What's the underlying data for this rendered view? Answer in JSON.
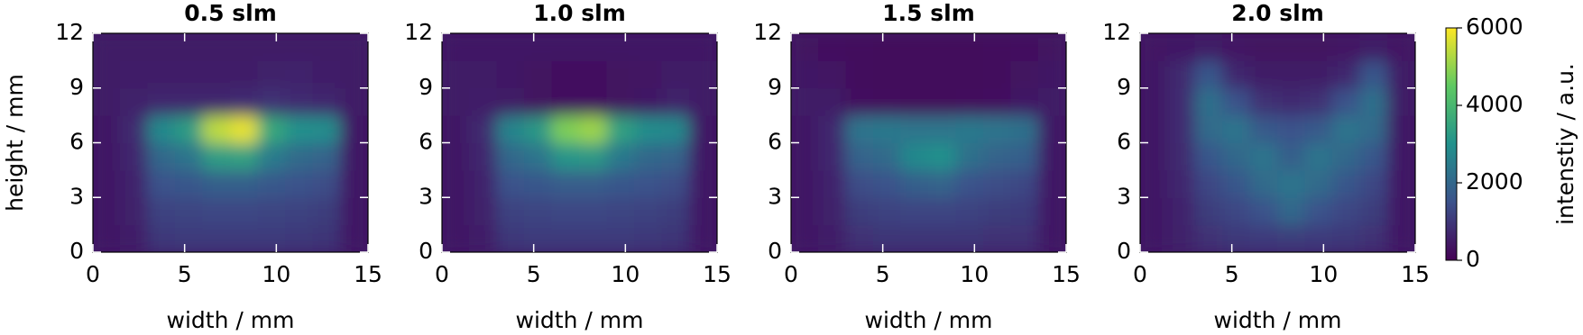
{
  "chart_data": [
    {
      "type": "heatmap",
      "title": "0.5 slm",
      "xlabel": "width / mm",
      "ylabel": "height / mm",
      "xlim": [
        0,
        15
      ],
      "xticks": [
        0,
        5,
        10,
        15
      ],
      "ylim": [
        0,
        12
      ],
      "yticks": [
        0,
        3,
        6,
        9,
        12
      ],
      "xbins": [
        0,
        1.5,
        3,
        4.5,
        6,
        7.5,
        9,
        10.5,
        12,
        13.5,
        15
      ],
      "ybins": [
        0,
        1.5,
        3,
        4.5,
        6,
        7.5,
        9,
        10.5,
        12
      ],
      "values": [
        [
          450,
          550,
          1000,
          1050,
          1050,
          1050,
          1050,
          1000,
          950,
          450
        ],
        [
          450,
          600,
          1200,
          1250,
          1300,
          1300,
          1250,
          1200,
          1100,
          450
        ],
        [
          450,
          650,
          1500,
          1600,
          1800,
          1800,
          1650,
          1500,
          1400,
          450
        ],
        [
          450,
          700,
          2000,
          2300,
          3300,
          3400,
          2500,
          2100,
          1900,
          450
        ],
        [
          450,
          750,
          2800,
          3300,
          5400,
          5800,
          3600,
          3000,
          2900,
          450
        ],
        [
          500,
          600,
          700,
          700,
          700,
          800,
          900,
          800,
          700,
          500
        ],
        [
          500,
          550,
          550,
          550,
          550,
          550,
          600,
          650,
          550,
          500
        ],
        [
          500,
          500,
          500,
          500,
          500,
          500,
          500,
          500,
          500,
          500
        ]
      ]
    },
    {
      "type": "heatmap",
      "title": "1.0 slm",
      "xlabel": "width / mm",
      "xlim": [
        0,
        15
      ],
      "xticks": [
        0,
        5,
        10,
        15
      ],
      "ylim": [
        0,
        12
      ],
      "yticks": [
        0,
        3,
        6,
        9,
        12
      ],
      "xbins": [
        0,
        1.5,
        3,
        4.5,
        6,
        7.5,
        9,
        10.5,
        12,
        13.5,
        15
      ],
      "ybins": [
        0,
        1.5,
        3,
        4.5,
        6,
        7.5,
        9,
        10.5,
        12
      ],
      "values": [
        [
          450,
          550,
          1000,
          1050,
          1050,
          1050,
          1050,
          1000,
          950,
          450
        ],
        [
          450,
          600,
          1200,
          1250,
          1300,
          1300,
          1250,
          1200,
          1100,
          450
        ],
        [
          450,
          650,
          1500,
          1600,
          1750,
          1750,
          1600,
          1500,
          1400,
          450
        ],
        [
          450,
          700,
          2000,
          2300,
          3100,
          3200,
          2400,
          2000,
          1900,
          450
        ],
        [
          450,
          750,
          2700,
          3200,
          4800,
          5100,
          3400,
          2900,
          2800,
          450
        ],
        [
          500,
          550,
          500,
          350,
          300,
          300,
          350,
          450,
          600,
          500
        ],
        [
          500,
          500,
          450,
          350,
          300,
          300,
          350,
          400,
          500,
          500
        ],
        [
          450,
          450,
          450,
          450,
          450,
          450,
          450,
          450,
          450,
          450
        ]
      ]
    },
    {
      "type": "heatmap",
      "title": "1.5 slm",
      "xlabel": "width / mm",
      "xlim": [
        0,
        15
      ],
      "xticks": [
        0,
        5,
        10,
        15
      ],
      "ylim": [
        0,
        12
      ],
      "yticks": [
        0,
        3,
        6,
        9,
        12
      ],
      "xbins": [
        0,
        1.5,
        3,
        4.5,
        6,
        7.5,
        9,
        10.5,
        12,
        13.5,
        15
      ],
      "ybins": [
        0,
        1.5,
        3,
        4.5,
        6,
        7.5,
        9,
        10.5,
        12
      ],
      "values": [
        [
          450,
          550,
          900,
          950,
          950,
          950,
          950,
          900,
          900,
          450
        ],
        [
          450,
          600,
          1100,
          1200,
          1250,
          1250,
          1200,
          1100,
          1050,
          450
        ],
        [
          450,
          650,
          1400,
          1500,
          1800,
          1900,
          1500,
          1400,
          1300,
          450
        ],
        [
          450,
          700,
          1900,
          2100,
          2800,
          3000,
          2200,
          1900,
          1800,
          450
        ],
        [
          450,
          700,
          2300,
          2400,
          2300,
          2300,
          2400,
          2300,
          2200,
          450
        ],
        [
          500,
          500,
          300,
          250,
          200,
          200,
          250,
          300,
          450,
          500
        ],
        [
          450,
          400,
          250,
          200,
          200,
          200,
          200,
          250,
          350,
          450
        ],
        [
          350,
          300,
          250,
          200,
          200,
          200,
          200,
          250,
          300,
          350
        ]
      ]
    },
    {
      "type": "heatmap",
      "title": "2.0 slm",
      "xlabel": "width / mm",
      "xlim": [
        0,
        15
      ],
      "xticks": [
        0,
        5,
        10,
        15
      ],
      "ylim": [
        0,
        12
      ],
      "yticks": [
        0,
        3,
        6,
        9,
        12
      ],
      "xbins": [
        0,
        1.5,
        3,
        4.5,
        6,
        7.5,
        9,
        10.5,
        12,
        13.5,
        15
      ],
      "ybins": [
        0,
        1.5,
        3,
        4.5,
        6,
        7.5,
        9,
        10.5,
        12
      ],
      "values": [
        [
          450,
          600,
          900,
          1000,
          1050,
          1100,
          1050,
          1000,
          900,
          450
        ],
        [
          450,
          650,
          1100,
          1300,
          1500,
          2000,
          1500,
          1300,
          1100,
          450
        ],
        [
          450,
          700,
          1300,
          1600,
          2100,
          2300,
          2100,
          1600,
          1300,
          450
        ],
        [
          450,
          750,
          1600,
          2000,
          2300,
          1800,
          2300,
          2000,
          1600,
          450
        ],
        [
          450,
          800,
          2100,
          2300,
          1700,
          1500,
          1700,
          2300,
          2100,
          450
        ],
        [
          450,
          800,
          2200,
          1500,
          900,
          800,
          900,
          1500,
          2200,
          500
        ],
        [
          450,
          750,
          1600,
          700,
          500,
          500,
          500,
          700,
          1600,
          500
        ],
        [
          400,
          450,
          500,
          400,
          350,
          350,
          350,
          400,
          500,
          400
        ]
      ]
    }
  ],
  "colorbar": {
    "label": "intenstiy / a.u.",
    "lim": [
      0,
      6000
    ],
    "ticks": [
      0,
      2000,
      4000,
      6000
    ],
    "colormap": "viridis"
  }
}
